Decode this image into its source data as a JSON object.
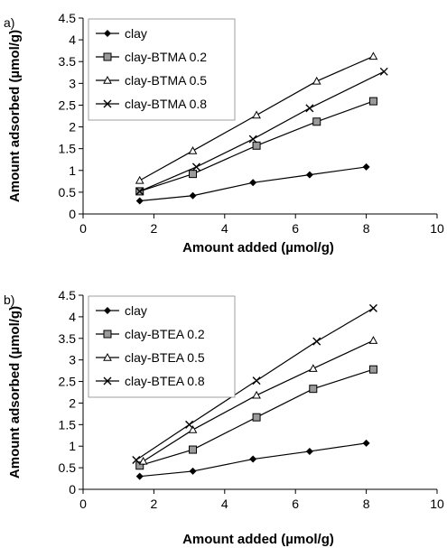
{
  "chart_data": [
    {
      "type": "line",
      "panel_label": "a)",
      "xlabel": "Amount added (µmol/g)",
      "ylabel": "Amount adsorbed (µmol/g)",
      "xlim": [
        0,
        10
      ],
      "ylim": [
        0,
        4.5
      ],
      "xticks": [
        0,
        2,
        4,
        6,
        8,
        10
      ],
      "yticks": [
        0,
        0.5,
        1,
        1.5,
        2,
        2.5,
        3,
        3.5,
        4,
        4.5
      ],
      "grid": false,
      "legend_position": "top-left",
      "series": [
        {
          "name": "clay",
          "marker": "diamond",
          "x": [
            1.6,
            3.1,
            4.8,
            6.4,
            8.0
          ],
          "y": [
            0.3,
            0.42,
            0.72,
            0.9,
            1.08
          ]
        },
        {
          "name": "clay-BTMA 0.2",
          "marker": "square",
          "x": [
            1.6,
            3.1,
            4.9,
            6.6,
            8.2
          ],
          "y": [
            0.52,
            0.92,
            1.57,
            2.12,
            2.59
          ]
        },
        {
          "name": "clay-BTMA 0.5",
          "marker": "triangle",
          "x": [
            1.6,
            3.1,
            4.9,
            6.6,
            8.2
          ],
          "y": [
            0.77,
            1.45,
            2.27,
            3.05,
            3.62
          ]
        },
        {
          "name": "clay-BTMA 0.8",
          "marker": "cross",
          "x": [
            1.6,
            3.2,
            4.8,
            6.4,
            8.5
          ],
          "y": [
            0.52,
            1.08,
            1.72,
            2.43,
            3.27
          ]
        }
      ]
    },
    {
      "type": "line",
      "panel_label": "b)",
      "xlabel": "Amount added (µmol/g)",
      "ylabel": "Amount adsorbed (µmol/g)",
      "xlim": [
        0,
        10
      ],
      "ylim": [
        0,
        4.5
      ],
      "xticks": [
        0,
        2,
        4,
        6,
        8,
        10
      ],
      "yticks": [
        0,
        0.5,
        1,
        1.5,
        2,
        2.5,
        3,
        3.5,
        4,
        4.5
      ],
      "grid": false,
      "legend_position": "top-left",
      "series": [
        {
          "name": "clay",
          "marker": "diamond",
          "x": [
            1.6,
            3.1,
            4.8,
            6.4,
            8.0
          ],
          "y": [
            0.3,
            0.42,
            0.7,
            0.88,
            1.07
          ]
        },
        {
          "name": "clay-BTEA 0.2",
          "marker": "square",
          "x": [
            1.6,
            3.1,
            4.9,
            6.5,
            8.2
          ],
          "y": [
            0.55,
            0.92,
            1.67,
            2.33,
            2.78
          ]
        },
        {
          "name": "clay-BTEA 0.5",
          "marker": "triangle",
          "x": [
            1.7,
            3.1,
            4.9,
            6.5,
            8.2
          ],
          "y": [
            0.65,
            1.38,
            2.18,
            2.8,
            3.45
          ]
        },
        {
          "name": "clay-BTEA 0.8",
          "marker": "cross",
          "x": [
            1.5,
            3.0,
            4.9,
            6.6,
            8.2
          ],
          "y": [
            0.68,
            1.5,
            2.52,
            3.43,
            4.2
          ]
        }
      ]
    }
  ]
}
